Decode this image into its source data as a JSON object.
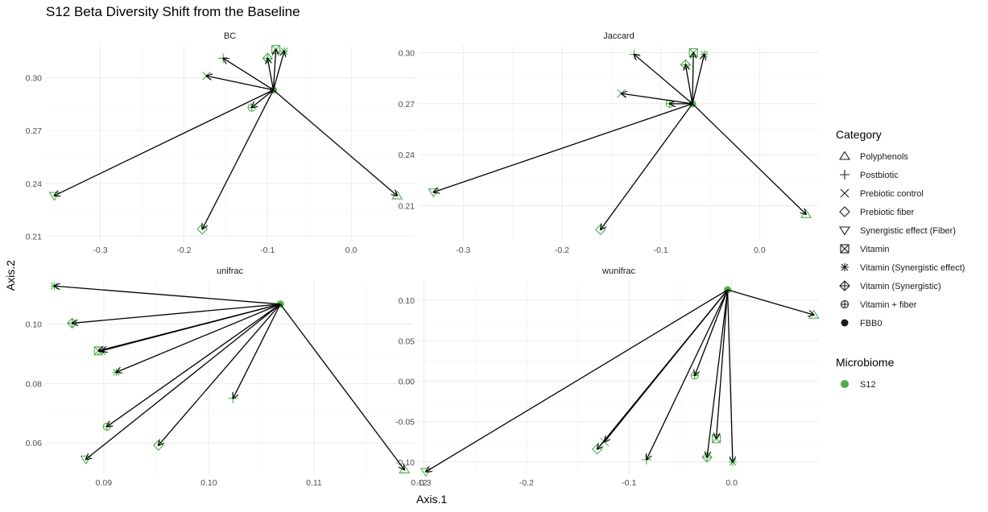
{
  "chart_data": {
    "type": "scatter",
    "title": "S12 Beta Diversity Shift from the Baseline",
    "xlabel": "Axis.1",
    "ylabel": "Axis.2",
    "point_color": "#4daf4a",
    "arrow_color": "#000000",
    "legend": {
      "position": "right",
      "category_title": "Category",
      "categories": [
        {
          "label": "Polyphenols",
          "shape": "triangle-up"
        },
        {
          "label": "Postbiotic",
          "shape": "plus"
        },
        {
          "label": "Prebiotic control",
          "shape": "cross"
        },
        {
          "label": "Prebiotic fiber",
          "shape": "diamond"
        },
        {
          "label": "Synergistic effect (Fiber)",
          "shape": "triangle-down"
        },
        {
          "label": "Vitamin",
          "shape": "square-cross"
        },
        {
          "label": "Vitamin (Synergistic effect)",
          "shape": "asterisk"
        },
        {
          "label": "Vitamin (Synergistic)",
          "shape": "diamond-plus"
        },
        {
          "label": "Vitamin + fiber",
          "shape": "circle-plus"
        },
        {
          "label": "FBB0",
          "shape": "filled-circle"
        }
      ],
      "microbiome_title": "Microbiome",
      "microbiome": [
        {
          "label": "S12",
          "color": "#4daf4a"
        }
      ]
    },
    "facets": [
      {
        "name": "BC",
        "xlim": [
          -0.365,
          0.075
        ],
        "ylim": [
          0.207,
          0.318
        ],
        "xticks": [
          -0.3,
          -0.2,
          -0.1,
          0.0
        ],
        "xtick_labels": [
          "-0.3",
          "-0.2",
          "-0.1",
          "0.0"
        ],
        "yticks": [
          0.21,
          0.24,
          0.27,
          0.3
        ],
        "ytick_labels": [
          "0.21",
          "0.24",
          "0.27",
          "0.30"
        ],
        "baseline": {
          "x": -0.093,
          "y": 0.293
        },
        "points": [
          {
            "category": "Polyphenols",
            "x": 0.055,
            "y": 0.233
          },
          {
            "category": "Postbiotic",
            "x": -0.153,
            "y": 0.311
          },
          {
            "category": "Prebiotic control",
            "x": -0.173,
            "y": 0.301
          },
          {
            "category": "Prebiotic fiber",
            "x": -0.178,
            "y": 0.214
          },
          {
            "category": "Synergistic effect (Fiber)",
            "x": -0.355,
            "y": 0.233
          },
          {
            "category": "Vitamin",
            "x": -0.09,
            "y": 0.316
          },
          {
            "category": "Vitamin (Synergistic effect)",
            "x": -0.08,
            "y": 0.315
          },
          {
            "category": "Vitamin (Synergistic)",
            "x": -0.1,
            "y": 0.311
          },
          {
            "category": "Vitamin + fiber",
            "x": -0.119,
            "y": 0.283
          }
        ]
      },
      {
        "name": "Jaccard",
        "xlim": [
          -0.345,
          0.06
        ],
        "ylim": [
          0.189,
          0.304
        ],
        "xticks": [
          -0.3,
          -0.2,
          -0.1,
          0.0
        ],
        "xtick_labels": [
          "-0.3",
          "-0.2",
          "-0.1",
          "0.0"
        ],
        "yticks": [
          0.21,
          0.24,
          0.27,
          0.3
        ],
        "ytick_labels": [
          "0.21",
          "0.24",
          "0.27",
          "0.30"
        ],
        "baseline": {
          "x": -0.068,
          "y": 0.27
        },
        "points": [
          {
            "category": "Polyphenols",
            "x": 0.047,
            "y": 0.205
          },
          {
            "category": "Postbiotic",
            "x": -0.127,
            "y": 0.299
          },
          {
            "category": "Prebiotic control",
            "x": -0.14,
            "y": 0.276
          },
          {
            "category": "Prebiotic fiber",
            "x": -0.161,
            "y": 0.196
          },
          {
            "category": "Synergistic effect (Fiber)",
            "x": -0.33,
            "y": 0.218
          },
          {
            "category": "Vitamin",
            "x": -0.067,
            "y": 0.3
          },
          {
            "category": "Vitamin (Synergistic effect)",
            "x": -0.056,
            "y": 0.299
          },
          {
            "category": "Vitamin (Synergistic)",
            "x": -0.075,
            "y": 0.293
          },
          {
            "category": "Vitamin + fiber",
            "x": -0.091,
            "y": 0.27
          }
        ]
      },
      {
        "name": "unifrac",
        "xlim": [
          0.0845,
          0.1195
        ],
        "ylim": [
          0.0495,
          0.1145
        ],
        "xticks": [
          0.09,
          0.1,
          0.11,
          0.12
        ],
        "xtick_labels": [
          "0.09",
          "0.10",
          "0.11",
          "0.12"
        ],
        "yticks": [
          0.06,
          0.08,
          0.1
        ],
        "ytick_labels": [
          "0.06",
          "0.08",
          "0.10"
        ],
        "baseline": {
          "x": 0.1068,
          "y": 0.1067
        },
        "points": [
          {
            "category": "Polyphenols",
            "x": 0.1186,
            "y": 0.051
          },
          {
            "category": "Postbiotic",
            "x": 0.1023,
            "y": 0.075
          },
          {
            "category": "Prebiotic control",
            "x": 0.0898,
            "y": 0.091
          },
          {
            "category": "Prebiotic fiber",
            "x": 0.0952,
            "y": 0.0592
          },
          {
            "category": "Synergistic effect (Fiber)",
            "x": 0.0883,
            "y": 0.0545
          },
          {
            "category": "Vitamin",
            "x": 0.0895,
            "y": 0.091
          },
          {
            "category": "Vitamin (Synergistic effect)",
            "x": 0.0853,
            "y": 0.1128
          },
          {
            "category": "Vitamin (Synergistic)",
            "x": 0.087,
            "y": 0.1003
          },
          {
            "category": "Vitamin + fiber",
            "x": 0.0903,
            "y": 0.0655
          },
          {
            "category": "Vitamin (Synergistic effect)",
            "x": 0.0912,
            "y": 0.0838
          }
        ]
      },
      {
        "name": "wunifrac",
        "xlim": [
          -0.305,
          0.085
        ],
        "ylim": [
          -0.115,
          0.124
        ],
        "xticks": [
          -0.3,
          -0.2,
          -0.1,
          0.0
        ],
        "xtick_labels": [
          "-0.3",
          "-0.2",
          "-0.1",
          "0.0"
        ],
        "yticks": [
          -0.1,
          -0.05,
          0.0,
          0.05,
          0.1
        ],
        "ytick_labels": [
          "-0.10",
          "-0.05",
          "0.00",
          "0.05",
          "0.10"
        ],
        "baseline": {
          "x": -0.004,
          "y": 0.113
        },
        "points": [
          {
            "category": "Polyphenols",
            "x": 0.08,
            "y": 0.082
          },
          {
            "category": "Postbiotic",
            "x": -0.083,
            "y": -0.097
          },
          {
            "category": "Prebiotic control",
            "x": -0.124,
            "y": -0.075
          },
          {
            "category": "Prebiotic fiber",
            "x": -0.131,
            "y": -0.084
          },
          {
            "category": "Synergistic effect (Fiber)",
            "x": -0.298,
            "y": -0.112
          },
          {
            "category": "Vitamin",
            "x": -0.015,
            "y": -0.071
          },
          {
            "category": "Vitamin (Synergistic effect)",
            "x": 0.001,
            "y": -0.1
          },
          {
            "category": "Vitamin (Synergistic)",
            "x": -0.024,
            "y": -0.094
          },
          {
            "category": "Vitamin + fiber",
            "x": -0.036,
            "y": 0.007
          }
        ]
      }
    ]
  }
}
